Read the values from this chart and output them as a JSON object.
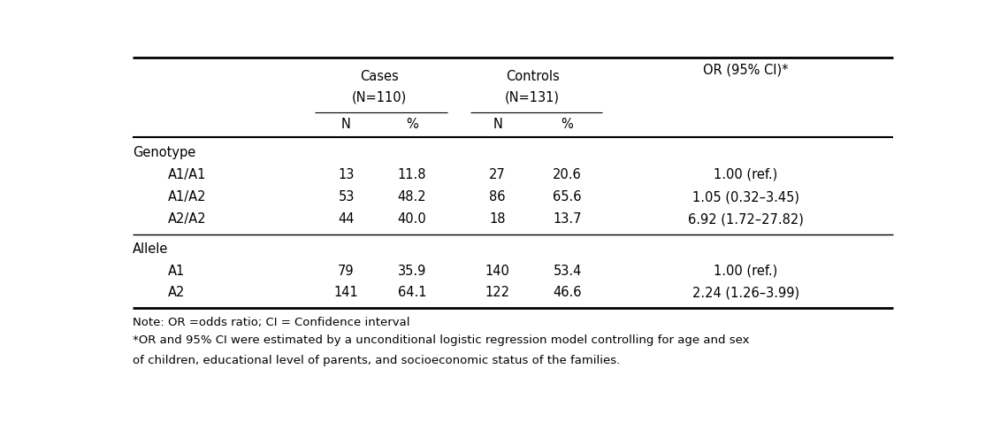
{
  "cases_header": "Cases",
  "cases_n": "(N=110)",
  "controls_header": "Controls",
  "controls_n": "(N=131)",
  "or_header": "OR (95% CI)*",
  "col_n_label": "N",
  "col_pct_label": "%",
  "rows": [
    {
      "label": "Genotype",
      "indent": false,
      "is_section": true,
      "cases_n": "",
      "cases_pct": "",
      "ctrl_n": "",
      "ctrl_pct": "",
      "or": ""
    },
    {
      "label": "A1/A1",
      "indent": true,
      "is_section": false,
      "cases_n": "13",
      "cases_pct": "11.8",
      "ctrl_n": "27",
      "ctrl_pct": "20.6",
      "or": "1.00 (ref.)"
    },
    {
      "label": "A1/A2",
      "indent": true,
      "is_section": false,
      "cases_n": "53",
      "cases_pct": "48.2",
      "ctrl_n": "86",
      "ctrl_pct": "65.6",
      "or": "1.05 (0.32–3.45)"
    },
    {
      "label": "A2/A2",
      "indent": true,
      "is_section": false,
      "cases_n": "44",
      "cases_pct": "40.0",
      "ctrl_n": "18",
      "ctrl_pct": "13.7",
      "or": "6.92 (1.72–27.82)"
    },
    {
      "label": "Allele",
      "indent": false,
      "is_section": true,
      "cases_n": "",
      "cases_pct": "",
      "ctrl_n": "",
      "ctrl_pct": "",
      "or": ""
    },
    {
      "label": "A1",
      "indent": true,
      "is_section": false,
      "cases_n": "79",
      "cases_pct": "35.9",
      "ctrl_n": "140",
      "ctrl_pct": "53.4",
      "or": "1.00 (ref.)"
    },
    {
      "label": "A2",
      "indent": true,
      "is_section": false,
      "cases_n": "141",
      "cases_pct": "64.1",
      "ctrl_n": "122",
      "ctrl_pct": "46.6",
      "or": "2.24 (1.26–3.99)"
    }
  ],
  "note1": "Note: OR =odds ratio; CI = Confidence interval",
  "note2": "*OR and 95% CI were estimated by a unconditional logistic regression model controlling for age and sex",
  "note3": "of children, educational level of parents, and socioeconomic status of the families.",
  "font_size": 10.5,
  "note_font_size": 9.5,
  "font_family": "DejaVu Sans"
}
